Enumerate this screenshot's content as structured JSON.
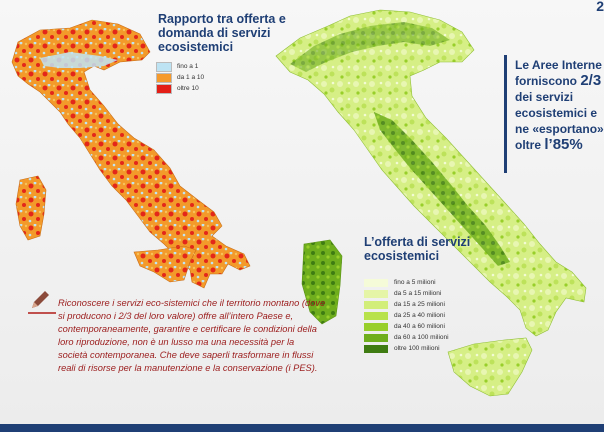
{
  "corner_mark": "2",
  "left_map": {
    "title": "Rapporto tra offerta e domanda di servizi ecosistemici",
    "legend": [
      {
        "label": "fino a 1",
        "color": "#bde3f3"
      },
      {
        "label": "da 1 a 10",
        "color": "#f59a2c"
      },
      {
        "label": "oltre 10",
        "color": "#e31e16"
      }
    ]
  },
  "side_note": {
    "line1": "Le Aree Interne forniscono",
    "highlight1": "2/3",
    "line2": "dei servizi ecosistemici e ne «esportano» oltre",
    "highlight2": "l’85%"
  },
  "right_map": {
    "title": "L’offerta di servizi ecosistemici",
    "legend": [
      {
        "label": "fino a 5 milioni",
        "color": "#f5fbd8"
      },
      {
        "label": "da 5 a 15 milioni",
        "color": "#e5f5a7"
      },
      {
        "label": "da 15 a 25 milioni",
        "color": "#d2ee7a"
      },
      {
        "label": "da 25 a 40 milioni",
        "color": "#b8e24b"
      },
      {
        "label": "da 40 a 60 milioni",
        "color": "#98cf2a"
      },
      {
        "label": "da 60 a 100 milioni",
        "color": "#6fae1d"
      },
      {
        "label": "oltre 100 milioni",
        "color": "#3f7c12"
      }
    ]
  },
  "quote": "Riconoscere i servizi eco-sistemici che il territorio montano (dove si producono i 2/3 del loro valore) offre all’intero Paese e, contemporaneamente, garantire e certificare le condizioni della loro riproduzione, non è un lusso ma una necessità per la società contemporanea. Che deve saperli trasformare in flussi reali di risorse per la manutenzione e la conservazione (i PES)."
}
